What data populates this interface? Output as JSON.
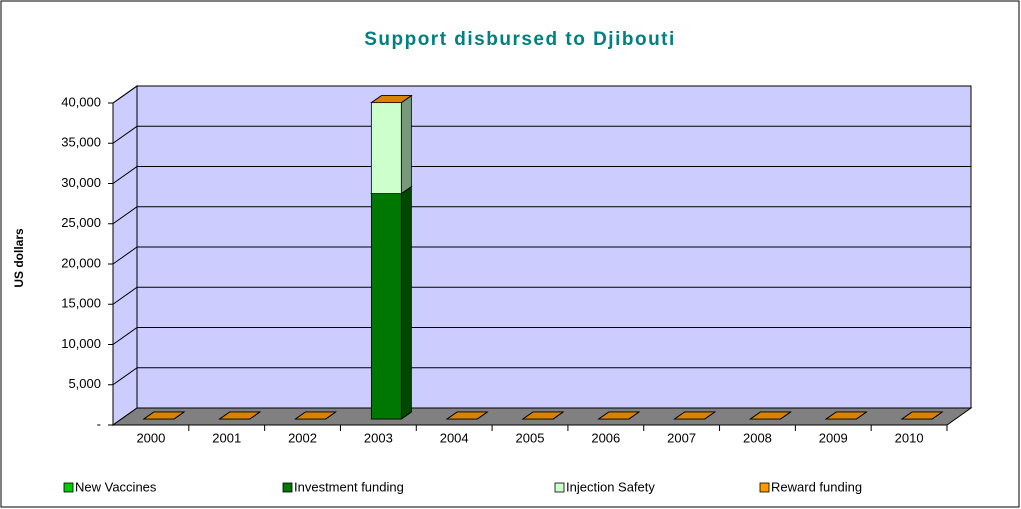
{
  "chart_data": {
    "type": "bar3d_stacked",
    "title": "Support disbursed to Djibouti",
    "y_label": "US dollars",
    "categories": [
      "2000",
      "2001",
      "2002",
      "2003",
      "2004",
      "2005",
      "2006",
      "2007",
      "2008",
      "2009",
      "2010"
    ],
    "series": [
      {
        "name": "New Vaccines",
        "color": "#00cc00",
        "values": [
          0,
          0,
          0,
          0,
          0,
          0,
          0,
          0,
          0,
          0,
          0
        ]
      },
      {
        "name": "Investment funding",
        "color": "#007700",
        "values": [
          0,
          0,
          0,
          28000,
          0,
          0,
          0,
          0,
          0,
          0,
          0
        ]
      },
      {
        "name": "Injection Safety",
        "color": "#ccffcc",
        "values": [
          0,
          0,
          0,
          11300,
          0,
          0,
          0,
          0,
          0,
          0,
          0
        ]
      },
      {
        "name": "Reward funding",
        "color": "#ff9900",
        "values": [
          0,
          0,
          0,
          0,
          0,
          0,
          0,
          0,
          0,
          0,
          0
        ]
      }
    ],
    "ylim": [
      0,
      40000
    ],
    "yticks": [
      {
        "value": 0,
        "label": "-"
      },
      {
        "value": 5000,
        "label": "5,000"
      },
      {
        "value": 10000,
        "label": "10,000"
      },
      {
        "value": 15000,
        "label": "15,000"
      },
      {
        "value": 20000,
        "label": "20,000"
      },
      {
        "value": 25000,
        "label": "25,000"
      },
      {
        "value": 30000,
        "label": "30,000"
      },
      {
        "value": 35000,
        "label": "35,000"
      },
      {
        "value": 40000,
        "label": "40,000"
      }
    ],
    "grid": true,
    "legend": "bottom"
  }
}
